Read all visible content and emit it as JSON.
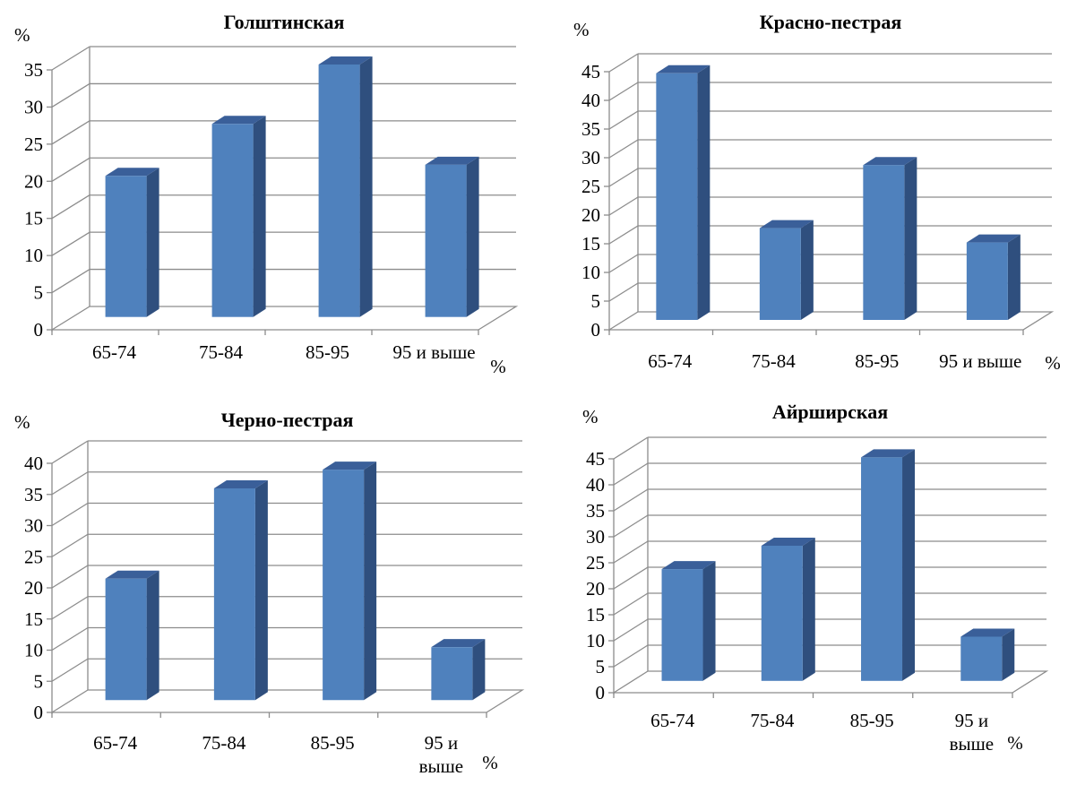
{
  "charts": [
    {
      "type": "bar",
      "title": "Голштинская",
      "ylabel": "%",
      "xlabel": "%",
      "categories": [
        "65-74",
        "75-84",
        "85-95",
        "95 и выше"
      ],
      "values": [
        19,
        26,
        34,
        20.5
      ],
      "ylim": [
        0,
        35
      ],
      "yticks": [
        0,
        5,
        10,
        15,
        20,
        25,
        30,
        35
      ],
      "bar_color": "#4F81BD",
      "bar_side_color": "#2F4F7E",
      "bar_top_color": "#3A5F99",
      "grid": true
    },
    {
      "type": "bar",
      "title": "Красно-пестрая",
      "ylabel": "%",
      "xlabel": "%",
      "categories": [
        "65-74",
        "75-84",
        "85-95",
        "95 и выше"
      ],
      "values": [
        43,
        16,
        27,
        13.5
      ],
      "ylim": [
        0,
        45
      ],
      "yticks": [
        0,
        5,
        10,
        15,
        20,
        25,
        30,
        35,
        40,
        45
      ],
      "bar_color": "#4F81BD",
      "bar_side_color": "#2F4F7E",
      "bar_top_color": "#3A5F99",
      "grid": true
    },
    {
      "type": "bar",
      "title": "Черно-пестрая",
      "ylabel": "%",
      "xlabel": "%",
      "categories": [
        "65-74",
        "75-84",
        "85-95",
        "95 и выше"
      ],
      "category_lines": [
        [
          "65-74"
        ],
        [
          "75-84"
        ],
        [
          "85-95"
        ],
        [
          "95 и",
          "выше"
        ]
      ],
      "values": [
        19.5,
        34,
        37,
        8.5
      ],
      "ylim": [
        0,
        40
      ],
      "yticks": [
        0,
        5,
        10,
        15,
        20,
        25,
        30,
        35,
        40
      ],
      "bar_color": "#4F81BD",
      "bar_side_color": "#2F4F7E",
      "bar_top_color": "#3A5F99",
      "grid": true
    },
    {
      "type": "bar",
      "title": "Айрширская",
      "ylabel": "%",
      "xlabel": "%",
      "categories": [
        "65-74",
        "75-84",
        "85-95",
        "95 и выше"
      ],
      "category_lines": [
        [
          "65-74"
        ],
        [
          "75-84"
        ],
        [
          "85-95"
        ],
        [
          "95 и",
          "выше"
        ]
      ],
      "values": [
        21.5,
        26,
        43,
        8.5
      ],
      "ylim": [
        0,
        45
      ],
      "yticks": [
        0,
        5,
        10,
        15,
        20,
        25,
        30,
        35,
        40,
        45
      ],
      "bar_color": "#4F81BD",
      "bar_side_color": "#2F4F7E",
      "bar_top_color": "#3A5F99",
      "grid": true
    }
  ],
  "chart_data": [
    {
      "type": "bar",
      "title": "Голштинская",
      "ylabel": "%",
      "xlabel": "%",
      "categories": [
        "65-74",
        "75-84",
        "85-95",
        "95 и выше"
      ],
      "values": [
        19,
        26,
        34,
        20.5
      ],
      "ylim": [
        0,
        35
      ],
      "grid": true
    },
    {
      "type": "bar",
      "title": "Красно-пестрая",
      "ylabel": "%",
      "xlabel": "%",
      "categories": [
        "65-74",
        "75-84",
        "85-95",
        "95 и выше"
      ],
      "values": [
        43,
        16,
        27,
        13.5
      ],
      "ylim": [
        0,
        45
      ],
      "grid": true
    },
    {
      "type": "bar",
      "title": "Черно-пестрая",
      "ylabel": "%",
      "xlabel": "%",
      "categories": [
        "65-74",
        "75-84",
        "85-95",
        "95 и выше"
      ],
      "values": [
        19.5,
        34,
        37,
        8.5
      ],
      "ylim": [
        0,
        40
      ],
      "grid": true
    },
    {
      "type": "bar",
      "title": "Айрширская",
      "ylabel": "%",
      "xlabel": "%",
      "categories": [
        "65-74",
        "75-84",
        "85-95",
        "95 и выше"
      ],
      "values": [
        21.5,
        26,
        43,
        8.5
      ],
      "ylim": [
        0,
        45
      ],
      "grid": true
    }
  ]
}
